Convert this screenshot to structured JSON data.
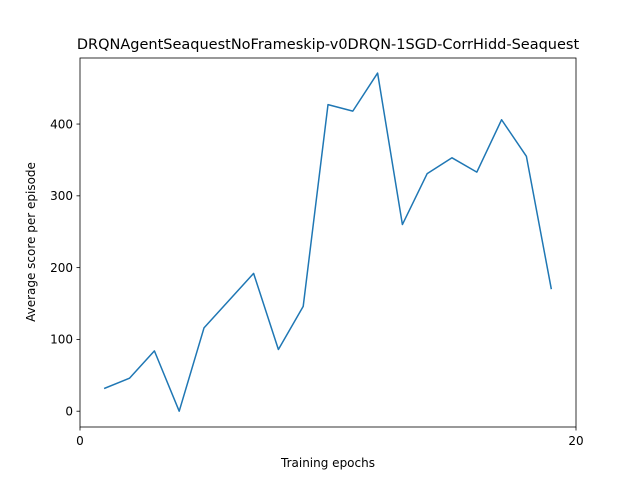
{
  "chart_data": {
    "type": "line",
    "title": "DRQNAgentSeaquestNoFrameskip-v0DRQN-1SGD-CorrHidd-Seaquest",
    "xlabel": "Training epochs",
    "ylabel": "Average score per episode",
    "xlim": [
      0,
      20
    ],
    "ylim": [
      -22,
      492
    ],
    "x_ticks": [
      0,
      20
    ],
    "y_ticks": [
      0,
      100,
      200,
      300,
      400
    ],
    "grid": false,
    "legend": "none",
    "series": [
      {
        "color": "#1f77b4",
        "x": [
          1,
          2,
          3,
          4,
          5,
          6,
          7,
          8,
          9,
          10,
          11,
          12,
          13,
          14,
          15,
          16,
          17,
          18,
          19
        ],
        "y": [
          32,
          46,
          84,
          0,
          116,
          154,
          192,
          86,
          146,
          427,
          418,
          471,
          260,
          331,
          353,
          333,
          406,
          355,
          171
        ]
      }
    ]
  }
}
